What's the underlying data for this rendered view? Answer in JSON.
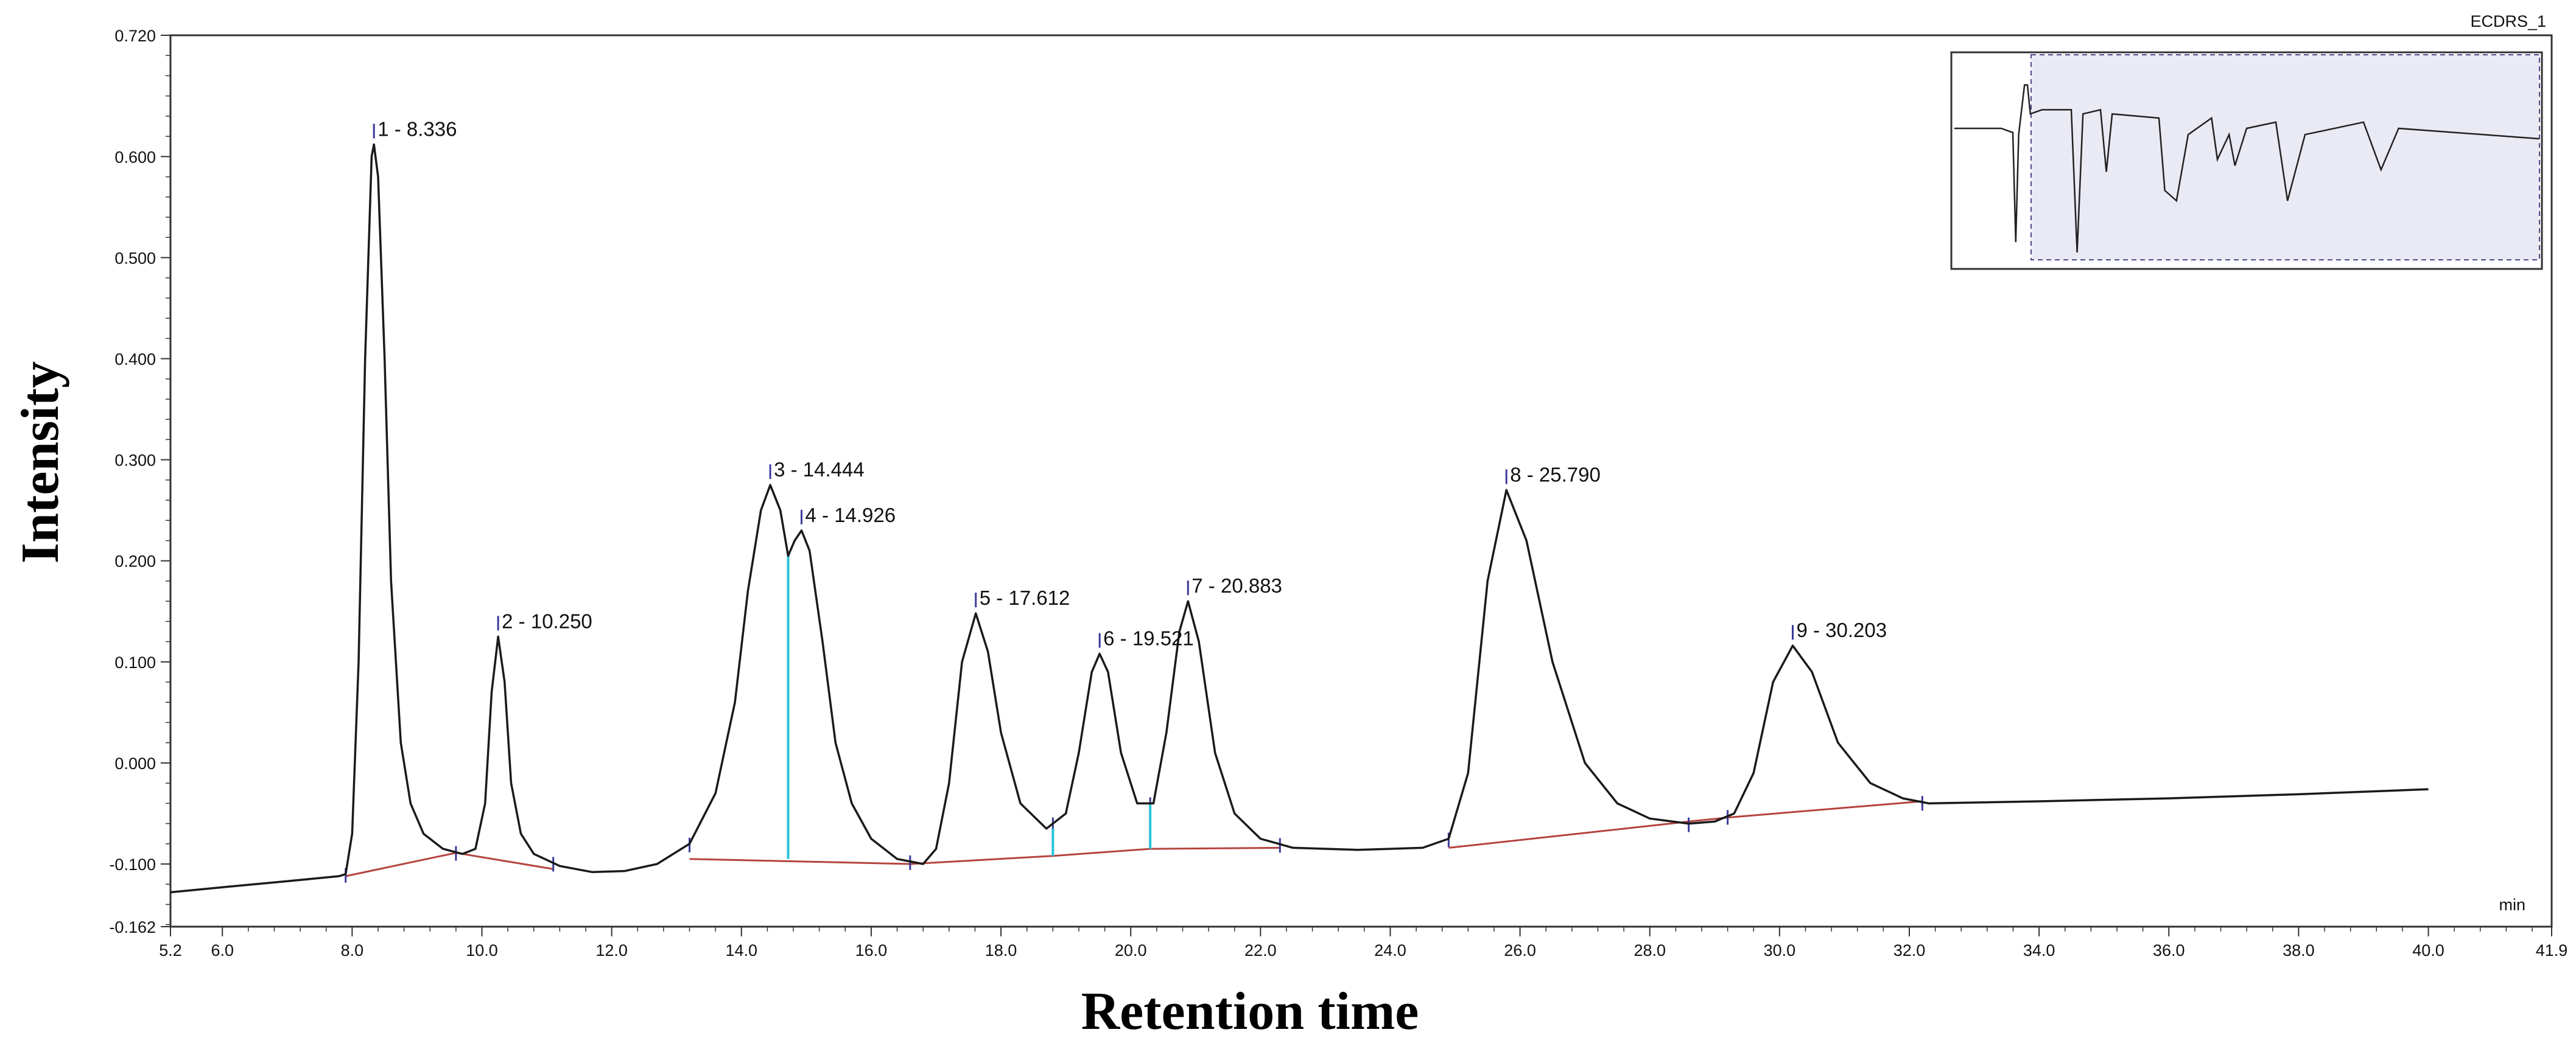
{
  "chart_data": {
    "type": "line",
    "dataset_name": "ECDRS_1",
    "x_unit_label": "min",
    "xlabel": "Retention time",
    "ylabel": "Intensity",
    "xlim": [
      5.2,
      41.9
    ],
    "ylim": [
      -0.162,
      0.72
    ],
    "x_ticks": [
      5.2,
      6.0,
      8.0,
      10.0,
      12.0,
      14.0,
      16.0,
      18.0,
      20.0,
      22.0,
      24.0,
      26.0,
      28.0,
      30.0,
      32.0,
      34.0,
      36.0,
      38.0,
      40.0,
      41.9
    ],
    "x_tick_labels": [
      "5.2",
      "6.0",
      "8.0",
      "10.0",
      "12.0",
      "14.0",
      "16.0",
      "18.0",
      "20.0",
      "22.0",
      "24.0",
      "26.0",
      "28.0",
      "30.0",
      "32.0",
      "34.0",
      "36.0",
      "38.0",
      "40.0",
      "41.9"
    ],
    "y_ticks": [
      -0.162,
      -0.1,
      0.0,
      0.1,
      0.2,
      0.3,
      0.4,
      0.5,
      0.6,
      0.72
    ],
    "y_tick_labels": [
      "-0.162",
      "-0.100",
      "0.000",
      "0.100",
      "0.200",
      "0.300",
      "0.400",
      "0.500",
      "0.600",
      "0.720"
    ],
    "peaks": [
      {
        "label": "1 - 8.336",
        "rt": 8.336,
        "height": 0.612
      },
      {
        "label": "2 - 10.250",
        "rt": 10.25,
        "height": 0.125
      },
      {
        "label": "3 - 14.444",
        "rt": 14.444,
        "height": 0.275
      },
      {
        "label": "4 - 14.926",
        "rt": 14.926,
        "height": 0.23
      },
      {
        "label": "5 - 17.612",
        "rt": 17.612,
        "height": 0.148
      },
      {
        "label": "6 - 19.521",
        "rt": 19.521,
        "height": 0.108
      },
      {
        "label": "7 - 20.883",
        "rt": 20.883,
        "height": 0.16
      },
      {
        "label": "8 - 25.790",
        "rt": 25.79,
        "height": 0.27
      },
      {
        "label": "9 - 30.203",
        "rt": 30.203,
        "height": 0.116
      }
    ],
    "trace": [
      [
        5.2,
        -0.128
      ],
      [
        6.0,
        -0.123
      ],
      [
        7.0,
        -0.117
      ],
      [
        7.8,
        -0.112
      ],
      [
        7.9,
        -0.11
      ],
      [
        8.0,
        -0.07
      ],
      [
        8.1,
        0.1
      ],
      [
        8.2,
        0.4
      ],
      [
        8.3,
        0.6
      ],
      [
        8.336,
        0.612
      ],
      [
        8.4,
        0.58
      ],
      [
        8.5,
        0.4
      ],
      [
        8.6,
        0.18
      ],
      [
        8.75,
        0.02
      ],
      [
        8.9,
        -0.04
      ],
      [
        9.1,
        -0.07
      ],
      [
        9.4,
        -0.085
      ],
      [
        9.7,
        -0.09
      ],
      [
        9.9,
        -0.085
      ],
      [
        10.05,
        -0.04
      ],
      [
        10.15,
        0.07
      ],
      [
        10.25,
        0.125
      ],
      [
        10.35,
        0.08
      ],
      [
        10.45,
        -0.02
      ],
      [
        10.6,
        -0.07
      ],
      [
        10.8,
        -0.09
      ],
      [
        11.2,
        -0.102
      ],
      [
        11.7,
        -0.108
      ],
      [
        12.2,
        -0.107
      ],
      [
        12.7,
        -0.1
      ],
      [
        13.2,
        -0.08
      ],
      [
        13.6,
        -0.03
      ],
      [
        13.9,
        0.06
      ],
      [
        14.1,
        0.17
      ],
      [
        14.3,
        0.25
      ],
      [
        14.444,
        0.275
      ],
      [
        14.6,
        0.25
      ],
      [
        14.72,
        0.205
      ],
      [
        14.82,
        0.22
      ],
      [
        14.926,
        0.23
      ],
      [
        15.05,
        0.21
      ],
      [
        15.25,
        0.12
      ],
      [
        15.45,
        0.02
      ],
      [
        15.7,
        -0.04
      ],
      [
        16.0,
        -0.075
      ],
      [
        16.4,
        -0.095
      ],
      [
        16.8,
        -0.1
      ],
      [
        17.0,
        -0.085
      ],
      [
        17.2,
        -0.02
      ],
      [
        17.4,
        0.1
      ],
      [
        17.612,
        0.148
      ],
      [
        17.8,
        0.11
      ],
      [
        18.0,
        0.03
      ],
      [
        18.3,
        -0.04
      ],
      [
        18.7,
        -0.065
      ],
      [
        19.0,
        -0.05
      ],
      [
        19.2,
        0.01
      ],
      [
        19.4,
        0.09
      ],
      [
        19.521,
        0.108
      ],
      [
        19.65,
        0.09
      ],
      [
        19.85,
        0.01
      ],
      [
        20.1,
        -0.04
      ],
      [
        20.35,
        -0.04
      ],
      [
        20.55,
        0.03
      ],
      [
        20.75,
        0.13
      ],
      [
        20.883,
        0.16
      ],
      [
        21.05,
        0.12
      ],
      [
        21.3,
        0.01
      ],
      [
        21.6,
        -0.05
      ],
      [
        22.0,
        -0.075
      ],
      [
        22.5,
        -0.084
      ],
      [
        23.5,
        -0.086
      ],
      [
        24.5,
        -0.084
      ],
      [
        24.9,
        -0.075
      ],
      [
        25.2,
        -0.01
      ],
      [
        25.5,
        0.18
      ],
      [
        25.79,
        0.27
      ],
      [
        26.1,
        0.22
      ],
      [
        26.5,
        0.1
      ],
      [
        27.0,
        0.0
      ],
      [
        27.5,
        -0.04
      ],
      [
        28.0,
        -0.055
      ],
      [
        28.6,
        -0.06
      ],
      [
        29.0,
        -0.058
      ],
      [
        29.3,
        -0.05
      ],
      [
        29.6,
        -0.01
      ],
      [
        29.9,
        0.08
      ],
      [
        30.203,
        0.116
      ],
      [
        30.5,
        0.09
      ],
      [
        30.9,
        0.02
      ],
      [
        31.4,
        -0.02
      ],
      [
        31.9,
        -0.035
      ],
      [
        32.3,
        -0.04
      ],
      [
        34.0,
        -0.038
      ],
      [
        36.0,
        -0.035
      ],
      [
        38.0,
        -0.031
      ],
      [
        40.0,
        -0.026
      ]
    ],
    "baseline_segments": [
      [
        [
          7.9,
          -0.112
        ],
        [
          9.6,
          -0.089
        ],
        [
          11.1,
          -0.105
        ]
      ],
      [
        [
          13.2,
          -0.095
        ],
        [
          16.6,
          -0.1
        ],
        [
          18.8,
          -0.092
        ],
        [
          20.3,
          -0.085
        ],
        [
          22.3,
          -0.084
        ]
      ],
      [
        [
          24.9,
          -0.084
        ],
        [
          28.6,
          -0.058
        ],
        [
          29.2,
          -0.054
        ],
        [
          32.2,
          -0.038
        ]
      ]
    ],
    "drop_lines": [
      {
        "x": 14.72,
        "from": -0.095,
        "to": 0.205
      },
      {
        "x": 18.8,
        "from": -0.092,
        "to": -0.065
      },
      {
        "x": 20.3,
        "from": -0.085,
        "to": -0.04
      }
    ],
    "boundary_ticks": [
      7.9,
      9.6,
      11.1,
      13.2,
      16.6,
      18.8,
      20.3,
      22.3,
      24.9,
      28.6,
      29.2,
      32.2
    ],
    "overview_trace": [
      [
        0.0,
        0.65
      ],
      [
        0.08,
        0.65
      ],
      [
        0.1,
        0.63
      ],
      [
        0.105,
        0.1
      ],
      [
        0.11,
        0.62
      ],
      [
        0.12,
        0.86
      ],
      [
        0.125,
        0.86
      ],
      [
        0.13,
        0.72
      ],
      [
        0.15,
        0.74
      ],
      [
        0.2,
        0.74
      ],
      [
        0.21,
        0.05
      ],
      [
        0.22,
        0.72
      ],
      [
        0.25,
        0.74
      ],
      [
        0.26,
        0.44
      ],
      [
        0.27,
        0.72
      ],
      [
        0.35,
        0.7
      ],
      [
        0.36,
        0.35
      ],
      [
        0.38,
        0.3
      ],
      [
        0.4,
        0.62
      ],
      [
        0.44,
        0.7
      ],
      [
        0.45,
        0.5
      ],
      [
        0.47,
        0.62
      ],
      [
        0.48,
        0.47
      ],
      [
        0.5,
        0.65
      ],
      [
        0.55,
        0.68
      ],
      [
        0.57,
        0.3
      ],
      [
        0.6,
        0.62
      ],
      [
        0.7,
        0.68
      ],
      [
        0.73,
        0.45
      ],
      [
        0.76,
        0.65
      ],
      [
        1.0,
        0.6
      ]
    ]
  }
}
